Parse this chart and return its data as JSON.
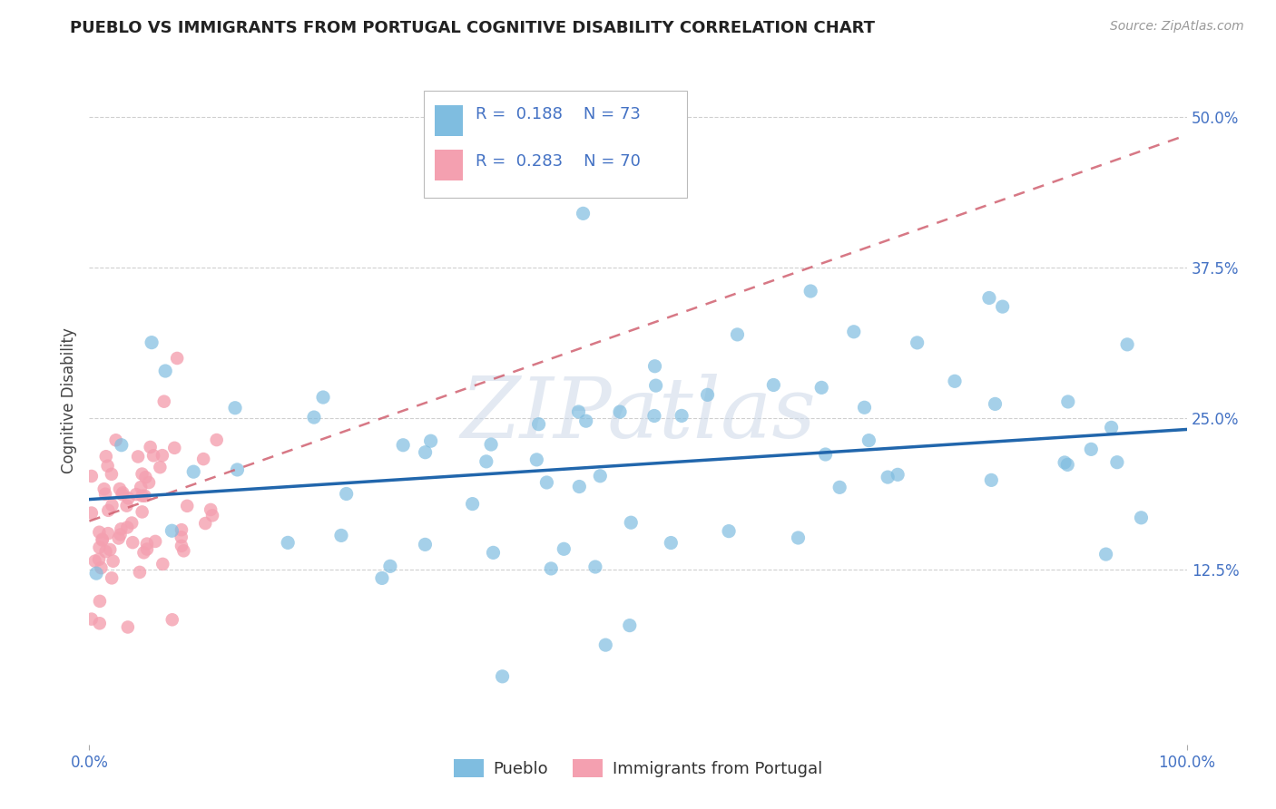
{
  "title": "PUEBLO VS IMMIGRANTS FROM PORTUGAL COGNITIVE DISABILITY CORRELATION CHART",
  "source": "Source: ZipAtlas.com",
  "ylabel": "Cognitive Disability",
  "xlim": [
    0,
    1.0
  ],
  "ylim": [
    -0.02,
    0.55
  ],
  "xtick_positions": [
    0,
    1.0
  ],
  "xtick_labels": [
    "0.0%",
    "100.0%"
  ],
  "ytick_values": [
    0.125,
    0.25,
    0.375,
    0.5
  ],
  "ytick_labels": [
    "12.5%",
    "25.0%",
    "37.5%",
    "50.0%"
  ],
  "R_pueblo": 0.188,
  "N_pueblo": 73,
  "R_portugal": 0.283,
  "N_portugal": 70,
  "color_pueblo": "#7fbde0",
  "color_portugal": "#f4a0b0",
  "trend_color_pueblo": "#2166ac",
  "trend_color_portugal": "#d06070",
  "background_color": "#ffffff",
  "grid_color": "#d0d0d0",
  "watermark": "ZIPatlas",
  "title_fontsize": 13,
  "axis_label_fontsize": 12,
  "tick_fontsize": 12,
  "legend_fontsize": 13
}
